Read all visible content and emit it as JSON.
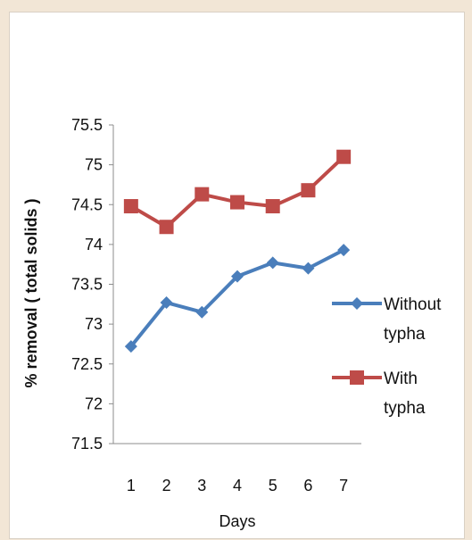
{
  "chart_data": {
    "type": "line",
    "x": [
      1,
      2,
      3,
      4,
      5,
      6,
      7
    ],
    "xlabel": "Days",
    "ylabel": "% removal ( total solids )",
    "ylim": [
      71.5,
      75.5
    ],
    "yticks": [
      71.5,
      72,
      72.5,
      73,
      73.5,
      74,
      74.5,
      75,
      75.5
    ],
    "series": [
      {
        "name_lines": [
          "Without",
          "typha"
        ],
        "color": "#4a7ebb",
        "marker": "diamond",
        "values": [
          72.72,
          73.27,
          73.15,
          73.6,
          73.77,
          73.7,
          73.93
        ]
      },
      {
        "name_lines": [
          "With",
          "typha"
        ],
        "color": "#be4b48",
        "marker": "square",
        "values": [
          74.48,
          74.22,
          74.63,
          74.53,
          74.48,
          74.68,
          75.1
        ]
      }
    ],
    "grid": false,
    "legend_position": "right"
  }
}
